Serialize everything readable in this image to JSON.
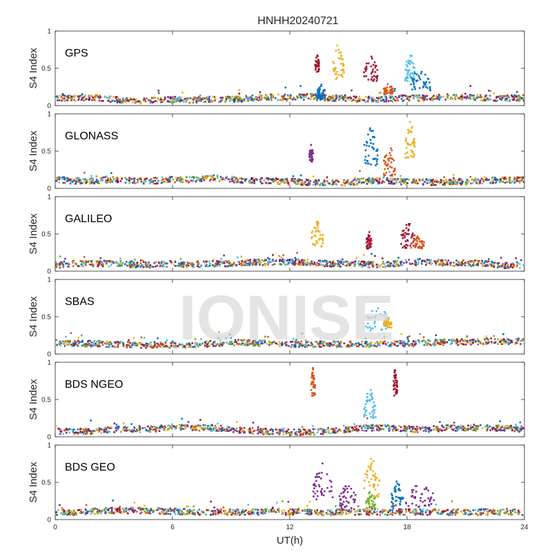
{
  "title": "HNHH20240721",
  "xlabel": "UT(h)",
  "ylabel": "S4 Index",
  "watermark": "IONISE",
  "colors": [
    "#0072BD",
    "#D95319",
    "#EDB120",
    "#7E2F8E",
    "#77AC30",
    "#4DBEEE",
    "#A2142F"
  ],
  "chart_data": [
    {
      "type": "scatter",
      "panel": "GPS",
      "xlim": [
        0,
        24
      ],
      "ylim": [
        0,
        1
      ],
      "xticks": [
        0,
        6,
        12,
        18,
        24
      ],
      "yticks": [
        0,
        0.5,
        1
      ],
      "ytick_labels": [
        "0",
        "0.5",
        "1"
      ],
      "baseline": [
        0.1,
        0.1,
        0.11,
        0.08,
        0.06,
        0.07,
        0.08,
        0.07,
        0.09,
        0.08,
        0.1,
        0.11,
        0.11,
        0.12,
        0.1,
        0.1,
        0.08,
        0.09,
        0.1,
        0.1,
        0.11,
        0.12,
        0.1,
        0.1,
        0.1
      ],
      "spikes": [
        {
          "x": [
            13.3,
            13.5
          ],
          "y": [
            0.45,
            0.7
          ],
          "color": "#A2142F"
        },
        {
          "x": [
            13.4,
            13.8
          ],
          "y": [
            0.1,
            0.3
          ],
          "color": "#0072BD"
        },
        {
          "x": [
            14.2,
            14.8
          ],
          "y": [
            0.35,
            0.88
          ],
          "color": "#EDB120"
        },
        {
          "x": [
            15.8,
            16.5
          ],
          "y": [
            0.3,
            0.7
          ],
          "color": "#A2142F"
        },
        {
          "x": [
            16.8,
            17.3
          ],
          "y": [
            0.15,
            0.3
          ],
          "color": "#D95319"
        },
        {
          "x": [
            17.9,
            18.4
          ],
          "y": [
            0.3,
            0.75
          ],
          "color": "#4DBEEE"
        },
        {
          "x": [
            18.2,
            19.2
          ],
          "y": [
            0.2,
            0.55
          ],
          "color": "#0072BD"
        }
      ]
    },
    {
      "type": "scatter",
      "panel": "GLONASS",
      "xlim": [
        0,
        24
      ],
      "ylim": [
        0,
        1
      ],
      "xticks": [
        0,
        6,
        12,
        18,
        24
      ],
      "yticks": [
        0,
        0.5,
        1
      ],
      "ytick_labels": [
        "0",
        "0.5",
        "1"
      ],
      "baseline": [
        0.12,
        0.1,
        0.1,
        0.12,
        0.1,
        0.1,
        0.12,
        0.12,
        0.14,
        0.12,
        0.1,
        0.1,
        0.09,
        0.08,
        0.08,
        0.08,
        0.1,
        0.1,
        0.09,
        0.08,
        0.08,
        0.09,
        0.1,
        0.11,
        0.12
      ],
      "spikes": [
        {
          "x": [
            13.0,
            13.2
          ],
          "y": [
            0.35,
            0.6
          ],
          "color": "#7E2F8E"
        },
        {
          "x": [
            15.8,
            16.5
          ],
          "y": [
            0.3,
            0.85
          ],
          "color": "#0072BD"
        },
        {
          "x": [
            16.8,
            17.4
          ],
          "y": [
            0.15,
            0.6
          ],
          "color": "#D95319"
        },
        {
          "x": [
            17.9,
            18.4
          ],
          "y": [
            0.4,
            0.95
          ],
          "color": "#EDB120"
        }
      ]
    },
    {
      "type": "scatter",
      "panel": "GALILEO",
      "xlim": [
        0,
        24
      ],
      "ylim": [
        0,
        1
      ],
      "xticks": [
        0,
        6,
        12,
        18,
        24
      ],
      "yticks": [
        0,
        0.5,
        1
      ],
      "ytick_labels": [
        "0",
        "0.5",
        "1"
      ],
      "baseline": [
        0.08,
        0.1,
        0.1,
        0.1,
        0.09,
        0.08,
        0.1,
        0.09,
        0.1,
        0.1,
        0.12,
        0.12,
        0.12,
        0.12,
        0.1,
        0.1,
        0.09,
        0.09,
        0.12,
        0.12,
        0.11,
        0.11,
        0.1,
        0.08,
        0.06
      ],
      "spikes": [
        {
          "x": [
            13.1,
            13.7
          ],
          "y": [
            0.3,
            0.7
          ],
          "color": "#EDB120"
        },
        {
          "x": [
            15.9,
            16.2
          ],
          "y": [
            0.3,
            0.55
          ],
          "color": "#A2142F"
        },
        {
          "x": [
            17.7,
            18.4
          ],
          "y": [
            0.3,
            0.72
          ],
          "color": "#A2142F"
        },
        {
          "x": [
            18.2,
            18.9
          ],
          "y": [
            0.3,
            0.48
          ],
          "color": "#D95319"
        }
      ]
    },
    {
      "type": "scatter",
      "panel": "SBAS",
      "xlim": [
        0,
        24
      ],
      "ylim": [
        0,
        1
      ],
      "xticks": [
        0,
        6,
        12,
        18,
        24
      ],
      "yticks": [
        0,
        0.5,
        1
      ],
      "ytick_labels": [
        "0",
        "0.5",
        "1"
      ],
      "baseline": [
        0.15,
        0.14,
        0.14,
        0.13,
        0.12,
        0.12,
        0.12,
        0.12,
        0.14,
        0.15,
        0.15,
        0.14,
        0.13,
        0.13,
        0.13,
        0.13,
        0.13,
        0.14,
        0.14,
        0.15,
        0.16,
        0.16,
        0.17,
        0.17,
        0.17
      ],
      "spikes": [
        {
          "x": [
            15.9,
            17.0
          ],
          "y": [
            0.3,
            0.72
          ],
          "color": "#4DBEEE"
        },
        {
          "x": [
            16.8,
            17.2
          ],
          "y": [
            0.35,
            0.5
          ],
          "color": "#EDB120"
        }
      ]
    },
    {
      "type": "scatter",
      "panel": "BDS NGEO",
      "xlim": [
        0,
        24
      ],
      "ylim": [
        0,
        1
      ],
      "xticks": [
        0,
        6,
        12,
        18,
        24
      ],
      "yticks": [
        0,
        0.5,
        1
      ],
      "ytick_labels": [
        "0",
        "0.5",
        "1"
      ],
      "baseline": [
        0.08,
        0.07,
        0.08,
        0.1,
        0.1,
        0.1,
        0.14,
        0.12,
        0.12,
        0.1,
        0.08,
        0.07,
        0.06,
        0.06,
        0.08,
        0.1,
        0.12,
        0.12,
        0.1,
        0.1,
        0.12,
        0.12,
        0.12,
        0.12,
        0.1
      ],
      "spikes": [
        {
          "x": [
            13.1,
            13.3
          ],
          "y": [
            0.55,
            0.98
          ],
          "color": "#D95319"
        },
        {
          "x": [
            15.8,
            16.4
          ],
          "y": [
            0.25,
            0.68
          ],
          "color": "#4DBEEE"
        },
        {
          "x": [
            17.3,
            17.5
          ],
          "y": [
            0.55,
            0.98
          ],
          "color": "#A2142F"
        }
      ]
    },
    {
      "type": "scatter",
      "panel": "BDS GEO",
      "xlim": [
        0,
        24
      ],
      "ylim": [
        0,
        1
      ],
      "xticks": [
        0,
        6,
        12,
        18,
        24
      ],
      "yticks": [
        0,
        0.5,
        1
      ],
      "ytick_labels": [
        "0",
        "0.5",
        "1"
      ],
      "xtick_labels": [
        "0",
        "6",
        "12",
        "18",
        "24"
      ],
      "baseline": [
        0.1,
        0.1,
        0.11,
        0.12,
        0.12,
        0.12,
        0.11,
        0.1,
        0.1,
        0.1,
        0.1,
        0.1,
        0.1,
        0.1,
        0.1,
        0.1,
        0.1,
        0.1,
        0.1,
        0.1,
        0.1,
        0.1,
        0.1,
        0.1,
        0.1
      ],
      "spikes": [
        {
          "x": [
            13.2,
            14.2
          ],
          "y": [
            0.2,
            0.8
          ],
          "color": "#7E2F8E"
        },
        {
          "x": [
            14.5,
            15.4
          ],
          "y": [
            0.15,
            0.5
          ],
          "color": "#7E2F8E"
        },
        {
          "x": [
            15.8,
            16.6
          ],
          "y": [
            0.3,
            0.85
          ],
          "color": "#EDB120"
        },
        {
          "x": [
            15.9,
            16.4
          ],
          "y": [
            0.15,
            0.4
          ],
          "color": "#77AC30"
        },
        {
          "x": [
            17.2,
            17.8
          ],
          "y": [
            0.15,
            0.55
          ],
          "color": "#0072BD"
        },
        {
          "x": [
            17.9,
            19.4
          ],
          "y": [
            0.15,
            0.55
          ],
          "color": "#7E2F8E"
        }
      ]
    }
  ]
}
